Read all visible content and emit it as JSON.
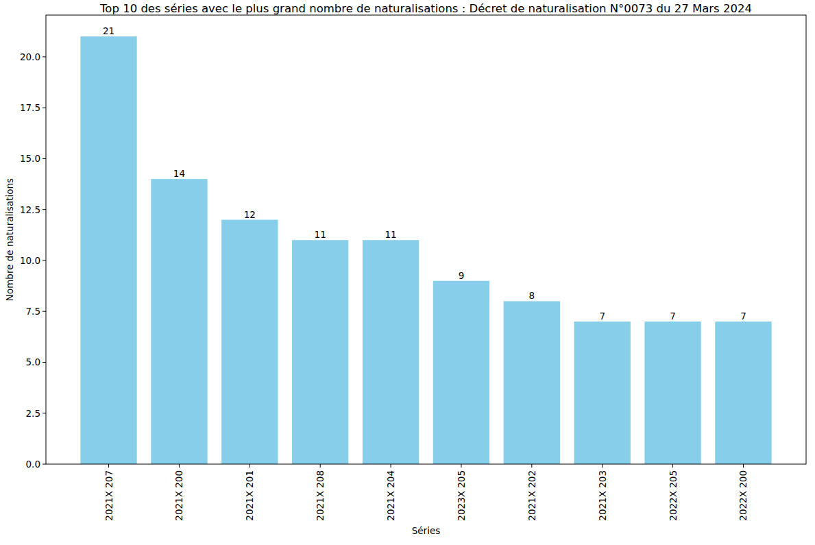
{
  "chart_data": {
    "type": "bar",
    "title": "Top 10 des séries avec le plus grand nombre de naturalisations : Décret de naturalisation N°0073 du 27 Mars 2024",
    "x_label": "Séries",
    "y_label": "Nombre de naturalisations",
    "categories": [
      "2021X 207",
      "2021X 200",
      "2021X 201",
      "2021X 208",
      "2021X 204",
      "2023X 205",
      "2021X 202",
      "2021X 203",
      "2022X 205",
      "2022X 200"
    ],
    "values": [
      21,
      14,
      12,
      11,
      11,
      9,
      8,
      7,
      7,
      7
    ],
    "color": "#87ceeb",
    "ylim": [
      0,
      22.05
    ],
    "yticks": [
      {
        "value": 0,
        "label": "0.0"
      },
      {
        "value": 2.5,
        "label": "2.5"
      },
      {
        "value": 5,
        "label": "5.0"
      },
      {
        "value": 7.5,
        "label": "7.5"
      },
      {
        "value": 10,
        "label": "10.0"
      },
      {
        "value": 12.5,
        "label": "12.5"
      },
      {
        "value": 15,
        "label": "15.0"
      },
      {
        "value": 17.5,
        "label": "17.5"
      },
      {
        "value": 20,
        "label": "20.0"
      }
    ],
    "data_labels": true,
    "grid": false
  }
}
